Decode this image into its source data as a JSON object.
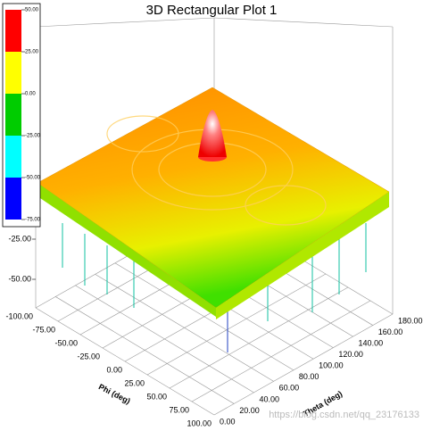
{
  "chart_data": {
    "type": "surface3d",
    "title": "3D Rectangular Plot 1",
    "xlabel": "Phi (deg)",
    "ylabel": "Theta (deg)",
    "xlim": [
      -100,
      100
    ],
    "xticks": [
      {
        "value": -100,
        "label": "-100.00"
      },
      {
        "value": -75,
        "label": "-75.00"
      },
      {
        "value": -50,
        "label": "-50.00"
      },
      {
        "value": -25,
        "label": "-25.00"
      },
      {
        "value": 0,
        "label": "0.00"
      },
      {
        "value": 25,
        "label": "25.00"
      },
      {
        "value": 50,
        "label": "50.00"
      },
      {
        "value": 75,
        "label": "75.00"
      },
      {
        "value": 100,
        "label": "100.00"
      }
    ],
    "ylim": [
      0,
      180
    ],
    "yticks": [
      {
        "value": 0,
        "label": "0.00"
      },
      {
        "value": 20,
        "label": "20.00"
      },
      {
        "value": 40,
        "label": "40.00"
      },
      {
        "value": 60,
        "label": "60.00"
      },
      {
        "value": 80,
        "label": "80.00"
      },
      {
        "value": 100,
        "label": "100.00"
      },
      {
        "value": 120,
        "label": "120.00"
      },
      {
        "value": 140,
        "label": "140.00"
      },
      {
        "value": 160,
        "label": "160.00"
      },
      {
        "value": 180,
        "label": "180.00"
      }
    ],
    "zticks": [
      {
        "value": -25,
        "label": "-25.00"
      },
      {
        "value": -50,
        "label": "-50.00"
      }
    ],
    "colorbar": {
      "ticks": [
        {
          "value": 50,
          "label": "50.00"
        },
        {
          "value": 25,
          "label": "25.00"
        },
        {
          "value": 0,
          "label": "0.00"
        },
        {
          "value": -25,
          "label": "-25.00"
        },
        {
          "value": -50,
          "label": "-50.00"
        },
        {
          "value": -75,
          "label": "-75.00"
        }
      ],
      "colors": [
        "#ff0000",
        "#ffff00",
        "#00cc00",
        "#00ffff",
        "#0000ff"
      ]
    },
    "watermark": "https://blog.csdn.net/qq_23176133"
  }
}
